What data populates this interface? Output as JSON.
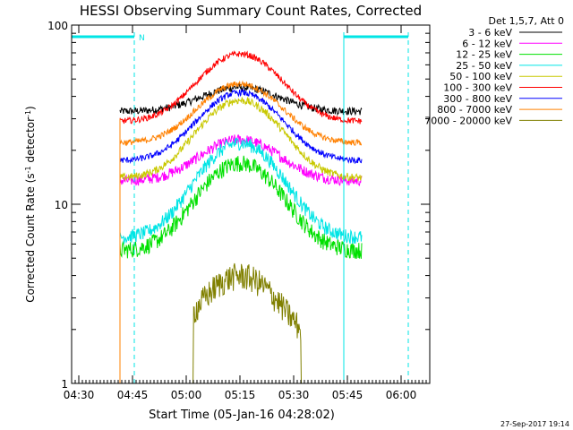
{
  "chart_data": {
    "type": "line",
    "title": "HESSI Observing Summary Count Rates, Corrected",
    "xlabel": "Start Time (05-Jan-16 04:28:02)",
    "ylabel": "Corrected Count Rate (s",
    "ylabel_sup": "-1",
    "ylabel_mid": " detector",
    "ylabel_sup2": "-1",
    "ylabel_end": ")",
    "y_scale": "log",
    "ylim": [
      1,
      100
    ],
    "xlim_minutes": [
      0,
      100
    ],
    "x_ticks": [
      {
        "label": "04:30",
        "t": 2
      },
      {
        "label": "04:45",
        "t": 17
      },
      {
        "label": "05:00",
        "t": 32
      },
      {
        "label": "05:15",
        "t": 47
      },
      {
        "label": "05:30",
        "t": 62
      },
      {
        "label": "05:45",
        "t": 77
      },
      {
        "label": "06:00",
        "t": 92
      }
    ],
    "y_ticks": [
      {
        "label": "1",
        "v": 1
      },
      {
        "label": "10",
        "v": 10
      },
      {
        "label": "100",
        "v": 100
      }
    ],
    "legend_title": "Det 1,5,7, Att 0",
    "legend_position": "top-right, outside plot",
    "data_window": [
      13.5,
      81
    ],
    "night_marker": "N",
    "night_intervals": [
      [
        0,
        17.5
      ],
      [
        76,
        94
      ]
    ],
    "series": [
      {
        "name": "3 - 6 keV",
        "color": "#000000",
        "base": 33,
        "peak": 45,
        "noise": 0.05
      },
      {
        "name": "6 - 12 keV",
        "color": "#ff00ff",
        "base": 13.5,
        "peak": 23,
        "noise": 0.07
      },
      {
        "name": "12 - 25 keV",
        "color": "#00e000",
        "base": 5.5,
        "peak": 17,
        "noise": 0.11
      },
      {
        "name": "25 - 50 keV",
        "color": "#00e5e5",
        "base": 6.5,
        "peak": 22,
        "noise": 0.09
      },
      {
        "name": "50 - 100 keV",
        "color": "#c8c800",
        "base": 14,
        "peak": 38,
        "noise": 0.05
      },
      {
        "name": "100 - 300 keV",
        "color": "#ff0000",
        "base": 29,
        "peak": 69,
        "noise": 0.04
      },
      {
        "name": "300 - 800 keV",
        "color": "#0000ff",
        "base": 17.5,
        "peak": 42,
        "noise": 0.04
      },
      {
        "name": "800 - 7000 keV",
        "color": "#ff8000",
        "base": 22,
        "peak": 47,
        "noise": 0.04
      },
      {
        "name": "7000 - 20000 keV",
        "color": "#808000",
        "base": 1.4,
        "peak": 4,
        "noise": 0.18
      }
    ],
    "grid": false
  },
  "footer": {
    "date": "27-Sep-2017 19:14"
  }
}
